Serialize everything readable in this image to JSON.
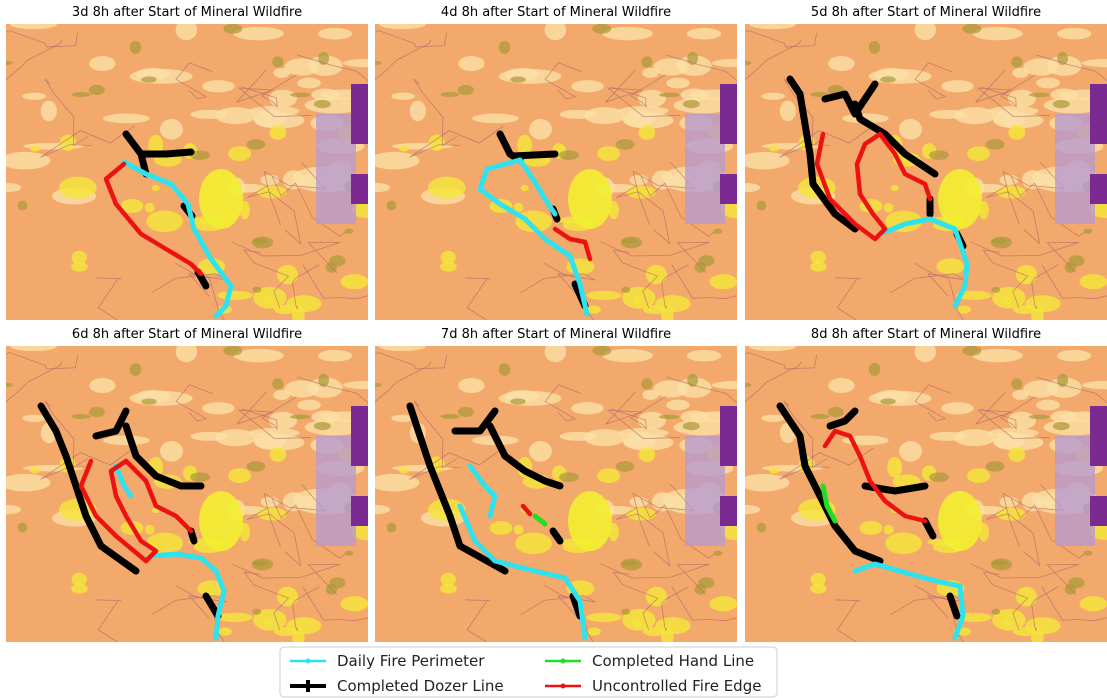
{
  "panels": [
    {
      "title": "3d 8h after Start of Mineral Wildfire"
    },
    {
      "title": "4d 8h after Start of Mineral Wildfire"
    },
    {
      "title": "5d 8h after Start of Mineral Wildfire"
    },
    {
      "title": "6d 8h after Start of Mineral Wildfire"
    },
    {
      "title": "7d 8h after Start of Mineral Wildfire"
    },
    {
      "title": "8d 8h after Start of Mineral Wildfire"
    }
  ],
  "legend": [
    {
      "label": "Daily Fire Perimeter",
      "color": "#2ee2ee"
    },
    {
      "label": "Completed Dozer Line",
      "color": "#000000"
    },
    {
      "label": "Completed Hand Line",
      "color": "#22dd22"
    },
    {
      "label": "Uncontrolled Fire Edge",
      "color": "#ee1111"
    }
  ]
}
